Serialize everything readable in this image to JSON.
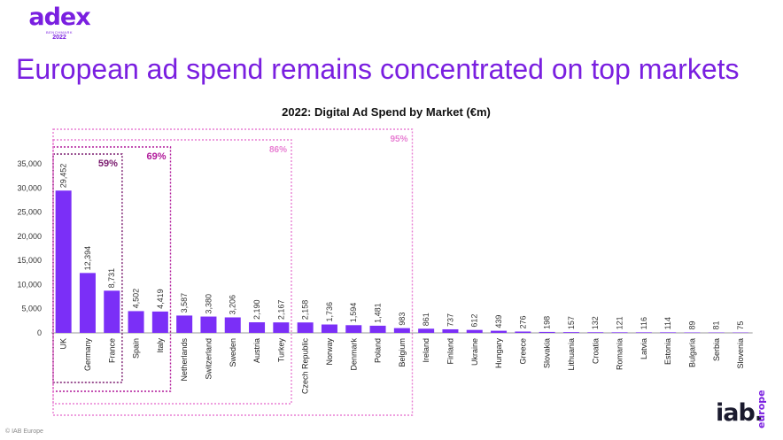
{
  "logo": {
    "name": "adex",
    "subtitle": "BENCHMARK",
    "year": "2022"
  },
  "slide_title": "European ad spend remains concentrated on top markets",
  "footer": {
    "copyright": "© IAB Europe",
    "brand_main": "iab.",
    "brand_side": "europe"
  },
  "colors": {
    "accent": "#7a1fe0",
    "bar": "#7b2ff7",
    "pink": "#e87fd3",
    "dark_purple": "#7a1a6e",
    "mid_purple": "#b0199a"
  },
  "chart_data": {
    "type": "bar",
    "title": "2022: Digital Ad Spend by Market (€m)",
    "xlabel": "",
    "ylabel": "",
    "ylim": [
      0,
      35000
    ],
    "yticks": [
      "0",
      "5,000",
      "10,000",
      "15,000",
      "20,000",
      "25,000",
      "30,000",
      "35,000"
    ],
    "grid": false,
    "categories": [
      "UK",
      "Germany",
      "France",
      "Spain",
      "Italy",
      "Netherlands",
      "Switzerland",
      "Sweden",
      "Austria",
      "Turkey",
      "Czech Republic",
      "Norway",
      "Denmark",
      "Poland",
      "Belgium",
      "Ireland",
      "Finland",
      "Ukraine",
      "Hungary",
      "Greece",
      "Slovakia",
      "Lithuania",
      "Croatia",
      "Romania",
      "Latvia",
      "Estonia",
      "Bulgaria",
      "Serbia",
      "Slovenia"
    ],
    "values": [
      29452,
      12394,
      8731,
      4502,
      4419,
      3587,
      3380,
      3206,
      2190,
      2167,
      2158,
      1736,
      1594,
      1481,
      983,
      861,
      737,
      612,
      439,
      276,
      198,
      157,
      132,
      121,
      116,
      114,
      89,
      81,
      75
    ],
    "value_labels": [
      "29,452",
      "12,394",
      "8,731",
      "4,502",
      "4,419",
      "3,587",
      "3,380",
      "3,206",
      "2,190",
      "2,167",
      "2,158",
      "1,736",
      "1,594",
      "1,481",
      "983",
      "861",
      "737",
      "612",
      "439",
      "276",
      "198",
      "157",
      "132",
      "121",
      "116",
      "114",
      "89",
      "81",
      "75"
    ],
    "annotations": [
      {
        "label": "59%",
        "first": 0,
        "last": 2,
        "style": "dotted-dark"
      },
      {
        "label": "69%",
        "first": 0,
        "last": 4,
        "style": "dotted-mid"
      },
      {
        "label": "86%",
        "first": 0,
        "last": 9,
        "style": "dotted-pink"
      },
      {
        "label": "95%",
        "first": 0,
        "last": 14,
        "style": "dotted-pink"
      }
    ]
  }
}
